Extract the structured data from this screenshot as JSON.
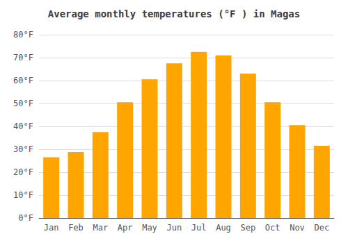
{
  "chart_data": {
    "type": "bar",
    "title": "Average monthly temperatures (°F ) in Magas",
    "categories": [
      "Jan",
      "Feb",
      "Mar",
      "Apr",
      "May",
      "Jun",
      "Jul",
      "Aug",
      "Sep",
      "Oct",
      "Nov",
      "Dec"
    ],
    "values": [
      26.5,
      28.8,
      37.5,
      50.5,
      60.5,
      67.5,
      72.5,
      71.0,
      63.0,
      50.5,
      40.5,
      31.5
    ],
    "color": "#FFA500",
    "ylim": [
      0,
      80
    ],
    "yticks": [
      {
        "value": 0,
        "label": "0°F"
      },
      {
        "value": 10,
        "label": "10°F"
      },
      {
        "value": 20,
        "label": "20°F"
      },
      {
        "value": 30,
        "label": "30°F"
      },
      {
        "value": 40,
        "label": "40°F"
      },
      {
        "value": 50,
        "label": "50°F"
      },
      {
        "value": 60,
        "label": "60°F"
      },
      {
        "value": 70,
        "label": "70°F"
      },
      {
        "value": 80,
        "label": "80°F"
      }
    ],
    "grid": true
  }
}
